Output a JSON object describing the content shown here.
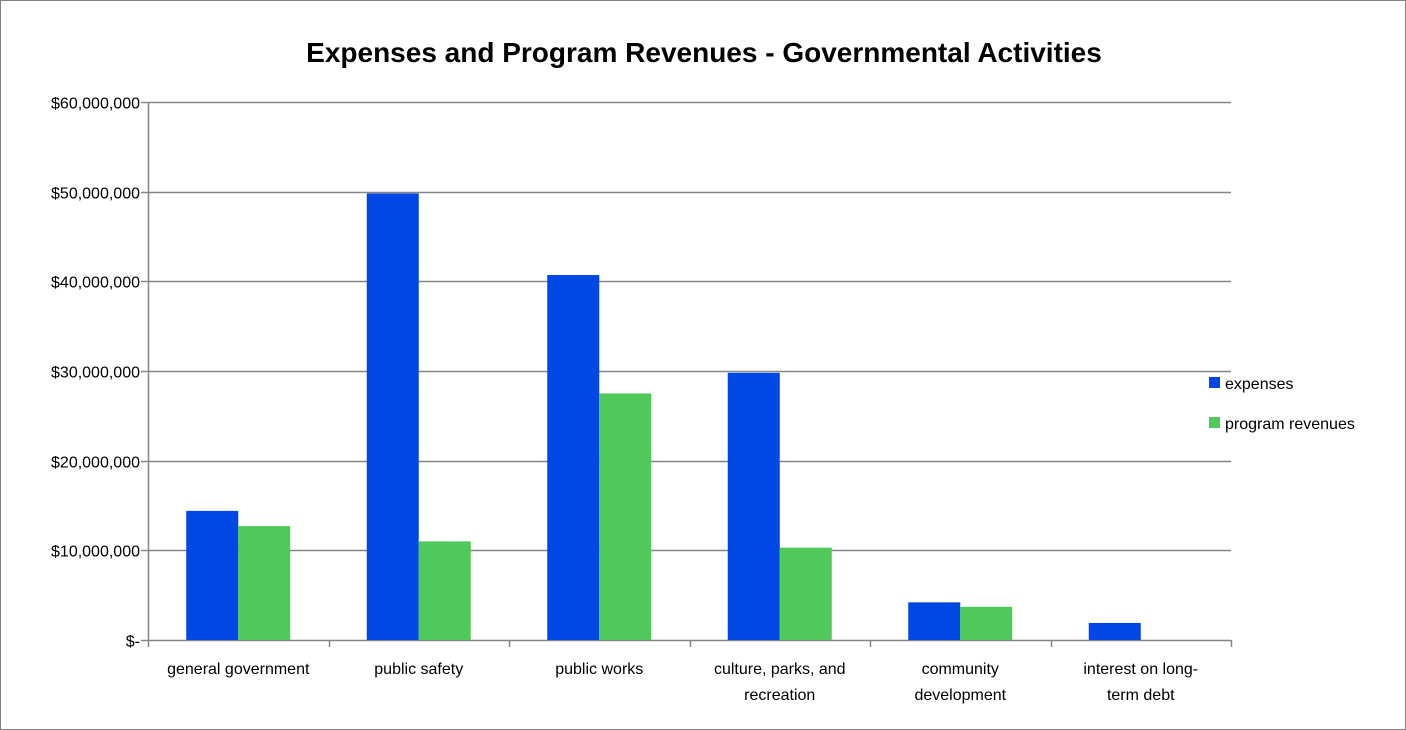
{
  "chart_data": {
    "type": "bar",
    "title": "Expenses and Program Revenues - Governmental Activities",
    "xlabel": "",
    "ylabel": "",
    "ylim": [
      0,
      60000000
    ],
    "y_ticks": [
      0,
      10000000,
      20000000,
      30000000,
      40000000,
      50000000,
      60000000
    ],
    "y_tick_labels": [
      "$-",
      "$10,000,000",
      "$20,000,000",
      "$30,000,000",
      "$40,000,000",
      "$50,000,000",
      "$60,000,000"
    ],
    "grid": true,
    "legend_position": "right",
    "categories": [
      [
        "general government"
      ],
      [
        "public safety"
      ],
      [
        "public works"
      ],
      [
        "culture, parks, and",
        "recreation"
      ],
      [
        "community",
        "development"
      ],
      [
        "interest on long-",
        "term debt"
      ]
    ],
    "series": [
      {
        "name": "expenses",
        "color": "#0047e6",
        "values": [
          14400000,
          49800000,
          40700000,
          29800000,
          4200000,
          1900000
        ]
      },
      {
        "name": "program revenues",
        "color": "#4ec95a",
        "values": [
          12700000,
          11000000,
          27500000,
          10300000,
          3700000,
          0
        ]
      }
    ]
  }
}
